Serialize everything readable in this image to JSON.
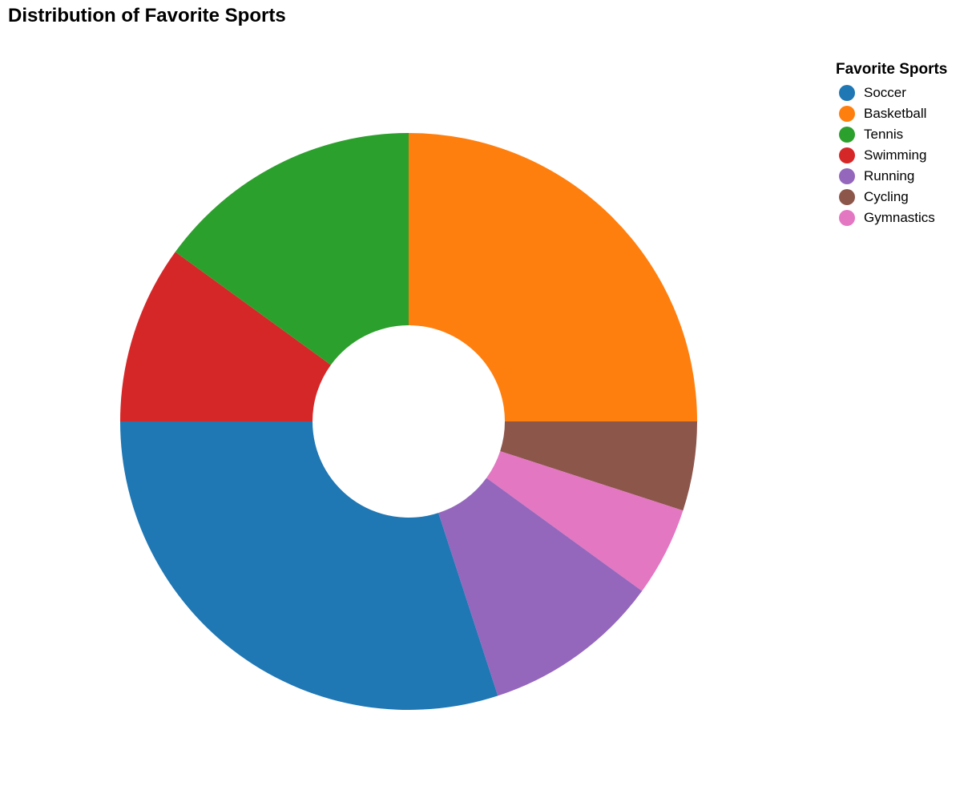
{
  "chart_data": {
    "type": "pie",
    "title": "Distribution of Favorite Sports",
    "legend_title": "Favorite Sports",
    "legend_position": "top-right",
    "donut": true,
    "slices": [
      {
        "label": "Soccer",
        "value": 30,
        "color": "#1f77b4"
      },
      {
        "label": "Basketball",
        "value": 25,
        "color": "#ff7f0e"
      },
      {
        "label": "Tennis",
        "value": 15,
        "color": "#2ca02c"
      },
      {
        "label": "Swimming",
        "value": 10,
        "color": "#d62728"
      },
      {
        "label": "Running",
        "value": 10,
        "color": "#9467bd"
      },
      {
        "label": "Cycling",
        "value": 5,
        "color": "#8c564b"
      },
      {
        "label": "Gymnastics",
        "value": 5,
        "color": "#e377c2"
      }
    ],
    "draw_order": [
      "Basketball",
      "Cycling",
      "Gymnastics",
      "Running",
      "Soccer",
      "Swimming",
      "Tennis"
    ]
  }
}
